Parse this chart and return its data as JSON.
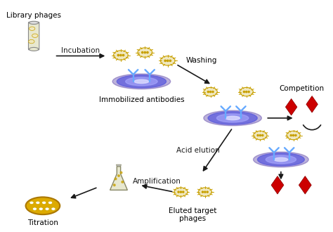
{
  "background_color": "#ffffff",
  "title": "",
  "labels": {
    "library_phages": "Library phages",
    "immobilized": "Immobilized antibodies",
    "washing": "Washing",
    "competition": "Competition",
    "acid_elution": "Acid elution",
    "eluted": "Eluted target\nphages",
    "amplification": "Amplification",
    "titration": "Titration"
  },
  "arrow_color": "#1a1a1a",
  "plate_color_main": "#4444cc",
  "plate_color_light": "#9999ff",
  "plate_color_center": "#ccccff",
  "antibody_color": "#66aaff",
  "phage_body_color": "#f0e8c0",
  "phage_dot_color": "#c8a000",
  "phage_spike_color": "#c8a000",
  "diamond_color": "#cc0000",
  "flask_body_color": "#e8e8d0",
  "flask_outline_color": "#888866",
  "titration_body_color": "#ddaa00",
  "titration_outline_color": "#aa7700",
  "label_fontsize": 7.5,
  "arrow_fontsize": 7.5
}
